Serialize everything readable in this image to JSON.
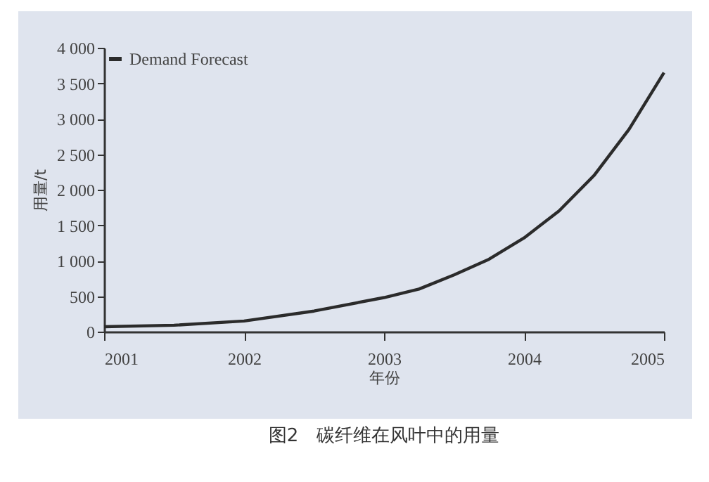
{
  "chart_data": {
    "type": "line",
    "title": "图2　碳纤维在风叶中的用量",
    "xlabel": "年份",
    "ylabel": "用量/t",
    "x": [
      2001,
      2001.5,
      2002,
      2002.5,
      2003,
      2003.25,
      2003.5,
      2003.75,
      2004,
      2004.25,
      2004.5,
      2004.75,
      2005
    ],
    "series": [
      {
        "name": "Demand Forecast",
        "color": "#2b2b2b",
        "values": [
          70,
          90,
          150,
          290,
          480,
          600,
          800,
          1020,
          1320,
          1700,
          2200,
          2850,
          3650
        ]
      }
    ],
    "xlim": [
      2001,
      2005
    ],
    "xticks": [
      2001,
      2002,
      2003,
      2004,
      2005
    ],
    "ylim": [
      0,
      4000
    ],
    "yticks": [
      0,
      500,
      {
        "value": 1000,
        "label": "1 000"
      },
      {
        "value": 1500,
        "label": "1 500"
      },
      {
        "value": 2000,
        "label": "2 000"
      },
      {
        "value": 2500,
        "label": "2 500"
      },
      {
        "value": 3000,
        "label": "3 000"
      },
      {
        "value": 3500,
        "label": "3 500"
      },
      {
        "value": 4000,
        "label": "4 000"
      }
    ],
    "grid": false,
    "legend": "top left",
    "marker": "none",
    "line_style": "solid"
  }
}
